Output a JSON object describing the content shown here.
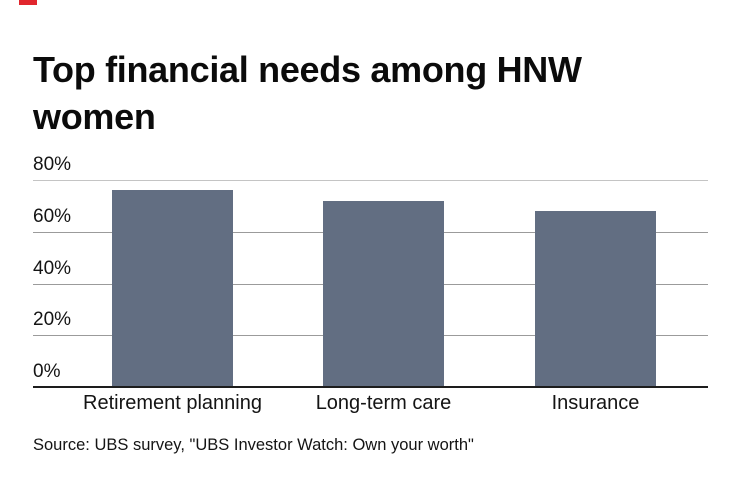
{
  "page": {
    "background": "#ffffff"
  },
  "brand": {
    "dash_color": "#e1262d"
  },
  "header": {
    "title": "Top financial needs among HNW women"
  },
  "footer": {
    "source": "Source: UBS survey, \"UBS Investor Watch: Own your worth\""
  },
  "chart_data": {
    "type": "bar",
    "title": "Top financial needs among HNW women",
    "categories": [
      "Retirement planning",
      "Long-term care",
      "Insurance"
    ],
    "values": [
      76,
      72,
      68
    ],
    "unit": "%",
    "xlabel": "",
    "ylabel": "",
    "ylim": [
      0,
      80
    ],
    "yticks": [
      0,
      20,
      40,
      60,
      80
    ],
    "ytick_labels": [
      "0%",
      "20%",
      "40%",
      "60%",
      "80%"
    ],
    "grid": true,
    "legend": false,
    "bar_color": "#626e82",
    "gridline_color": "#9b9b9b",
    "top_gridline_color": "#c4c4c4",
    "baseline_color": "#1d1d1d",
    "source": "Source: UBS survey, \"UBS Investor Watch: Own your worth\""
  }
}
